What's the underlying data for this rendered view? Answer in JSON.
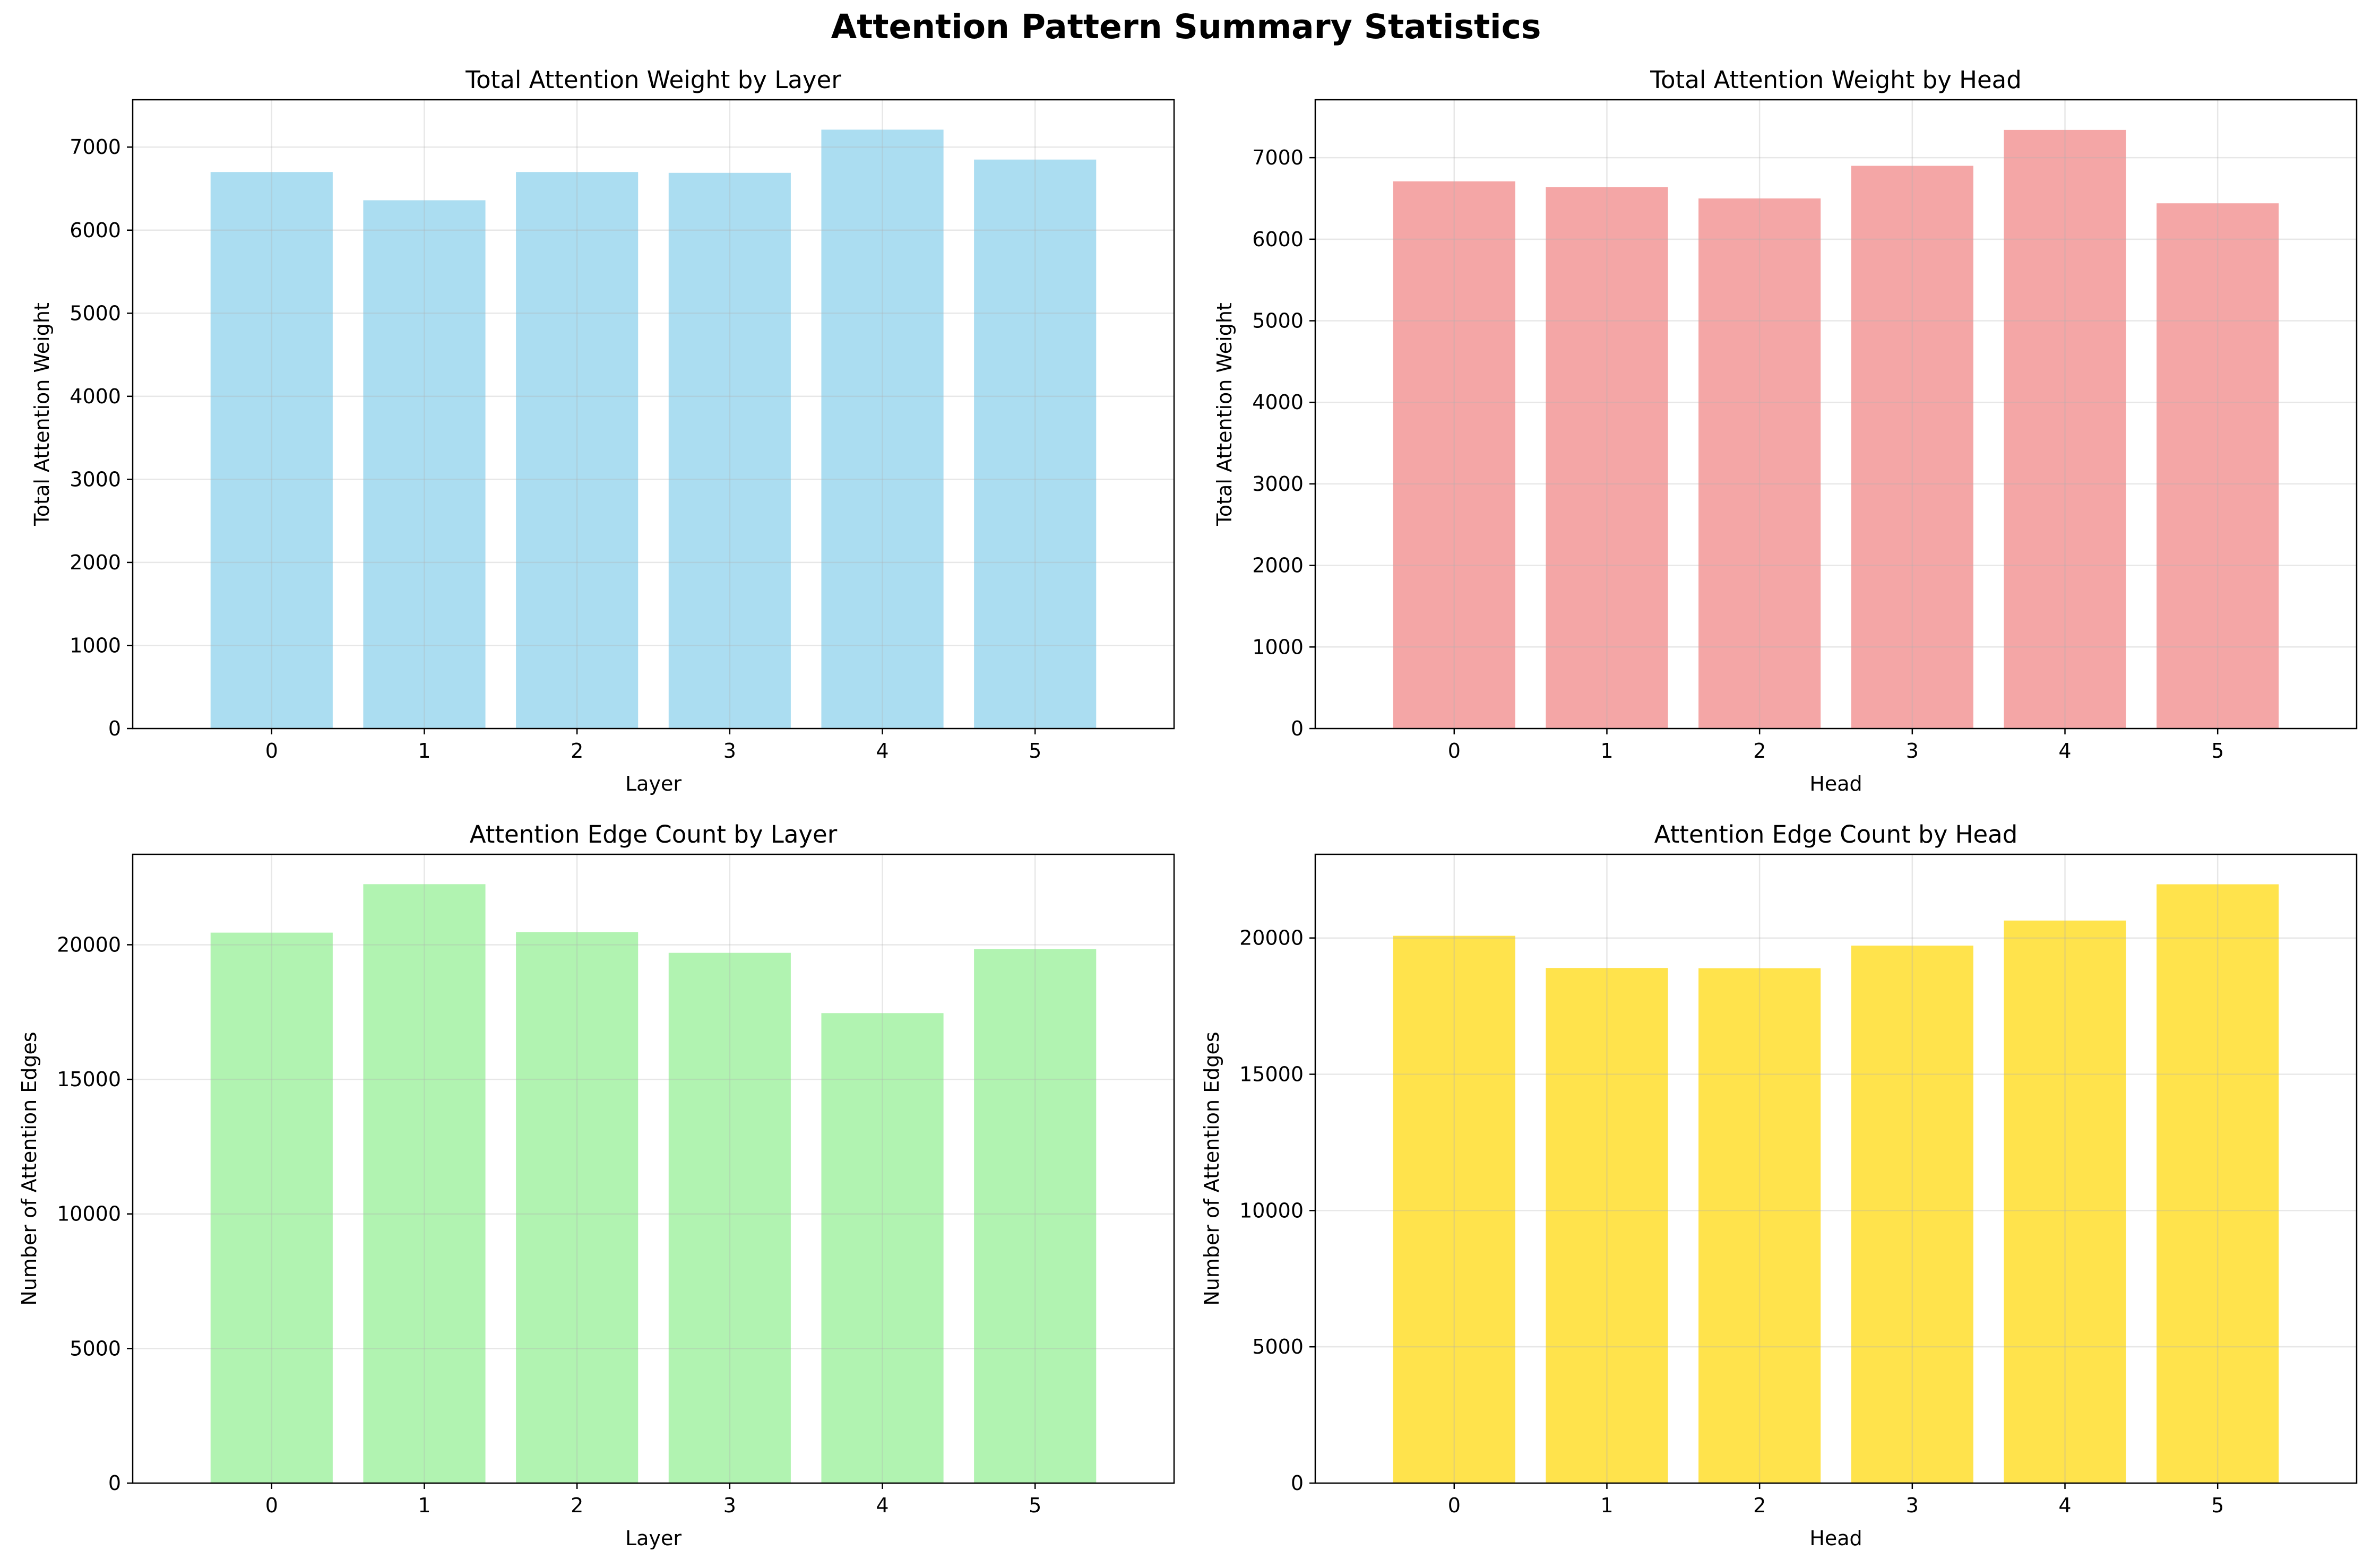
{
  "figure": {
    "suptitle": "Attention Pattern Summary Statistics"
  },
  "chart_data": [
    {
      "type": "bar",
      "title": "Total Attention Weight by Layer",
      "xlabel": "Layer",
      "ylabel": "Total Attention Weight",
      "categories": [
        "0",
        "1",
        "2",
        "3",
        "4",
        "5"
      ],
      "values": [
        6700,
        6360,
        6700,
        6690,
        7210,
        6850
      ],
      "ylim": [
        0,
        7570
      ],
      "yticks": [
        0,
        1000,
        2000,
        3000,
        4000,
        5000,
        6000,
        7000
      ],
      "color": "#87ceeb",
      "grid": true
    },
    {
      "type": "bar",
      "title": "Total Attention Weight by Head",
      "xlabel": "Head",
      "ylabel": "Total Attention Weight",
      "categories": [
        "0",
        "1",
        "2",
        "3",
        "4",
        "5"
      ],
      "values": [
        6710,
        6640,
        6500,
        6900,
        7340,
        6440
      ],
      "ylim": [
        0,
        7710
      ],
      "yticks": [
        0,
        1000,
        2000,
        3000,
        4000,
        5000,
        6000,
        7000
      ],
      "color": "#f08080",
      "grid": true
    },
    {
      "type": "bar",
      "title": "Attention Edge Count by Layer",
      "xlabel": "Layer",
      "ylabel": "Number of Attention Edges",
      "categories": [
        "0",
        "1",
        "2",
        "3",
        "4",
        "5"
      ],
      "values": [
        20450,
        22250,
        20470,
        19700,
        17460,
        19840
      ],
      "ylim": [
        0,
        23360
      ],
      "yticks": [
        0,
        5000,
        10000,
        15000,
        20000
      ],
      "color": "#90ee90",
      "grid": true
    },
    {
      "type": "bar",
      "title": "Attention Edge Count by Head",
      "xlabel": "Head",
      "ylabel": "Number of Attention Edges",
      "categories": [
        "0",
        "1",
        "2",
        "3",
        "4",
        "5"
      ],
      "values": [
        20080,
        18900,
        18890,
        19720,
        20640,
        21970
      ],
      "ylim": [
        0,
        23070
      ],
      "yticks": [
        0,
        5000,
        10000,
        15000,
        20000
      ],
      "color": "#ffd700",
      "grid": true
    }
  ]
}
